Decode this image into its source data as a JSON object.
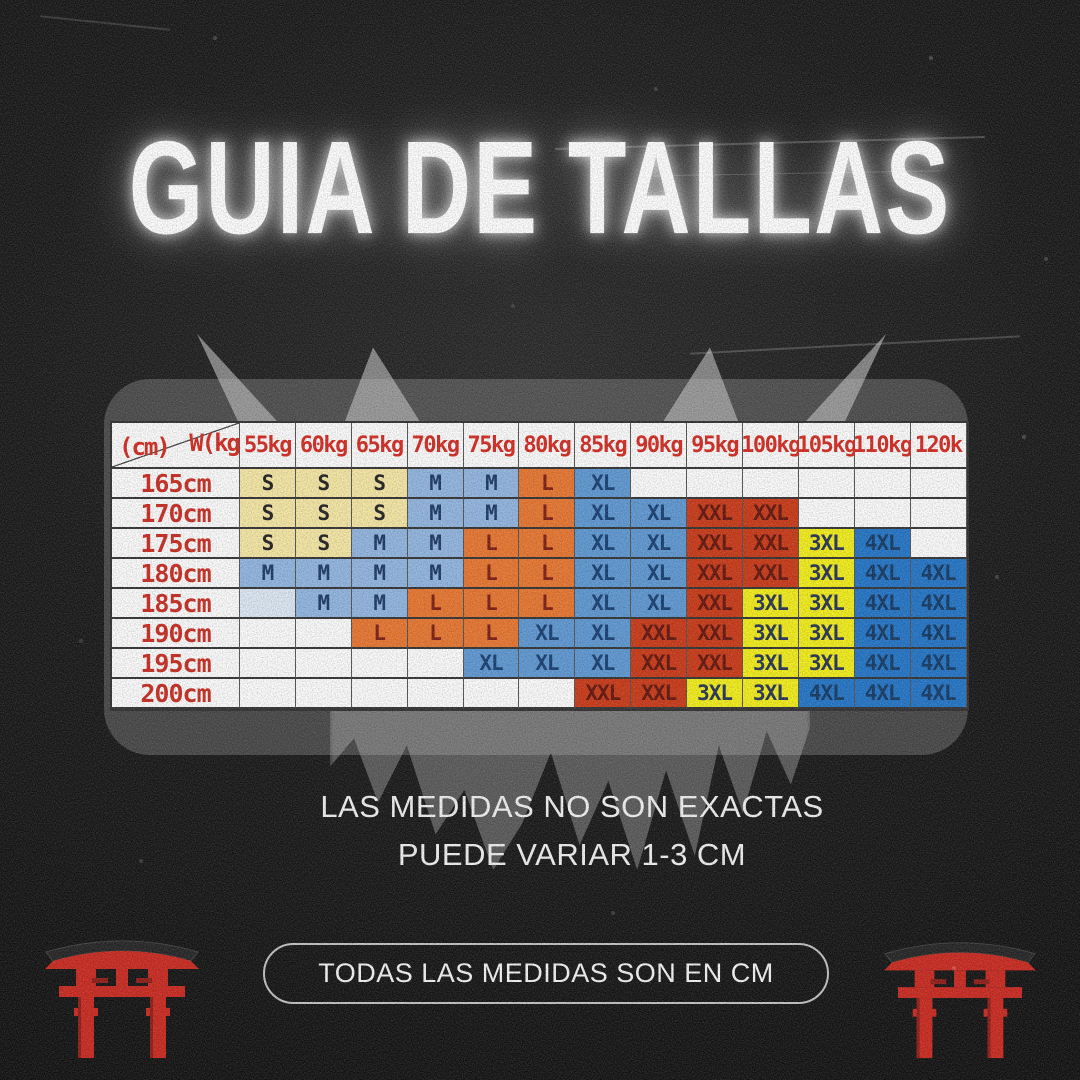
{
  "title": "GUIA DE TALLAS",
  "chart_data": {
    "type": "table",
    "title": "GUIA DE TALLAS",
    "corner_left": "(cm)",
    "corner_right": "W(kg",
    "columns": [
      "55kg",
      "60kg",
      "65kg",
      "70kg",
      "75kg",
      "80kg",
      "85kg",
      "90kg",
      "95kg",
      "100kg",
      "105kg",
      "110kg",
      "120k"
    ],
    "rows": [
      {
        "height": "165cm",
        "sizes": [
          "S",
          "S",
          "S",
          "M",
          "M",
          "L",
          "XL",
          "",
          "",
          "",
          "",
          "",
          ""
        ]
      },
      {
        "height": "170cm",
        "sizes": [
          "S",
          "S",
          "S",
          "M",
          "M",
          "L",
          "XL",
          "XL",
          "XXL",
          "XXL",
          "",
          "",
          ""
        ]
      },
      {
        "height": "175cm",
        "sizes": [
          "S",
          "S",
          "M",
          "M",
          "L",
          "L",
          "XL",
          "XL",
          "XXL",
          "XXL",
          "3XL",
          "4XL",
          ""
        ]
      },
      {
        "height": "180cm",
        "sizes": [
          "M",
          "M",
          "M",
          "M",
          "L",
          "L",
          "XL",
          "XL",
          "XXL",
          "XXL",
          "3XL",
          "4XL",
          "4XL"
        ]
      },
      {
        "height": "185cm",
        "sizes": [
          "",
          "M",
          "M",
          "L",
          "L",
          "L",
          "XL",
          "XL",
          "XXL",
          "3XL",
          "3XL",
          "4XL",
          "4XL"
        ]
      },
      {
        "height": "190cm",
        "sizes": [
          "",
          "",
          "L",
          "L",
          "L",
          "XL",
          "XL",
          "XXL",
          "XXL",
          "3XL",
          "3XL",
          "4XL",
          "4XL"
        ]
      },
      {
        "height": "195cm",
        "sizes": [
          "",
          "",
          "",
          "",
          "XL",
          "XL",
          "XL",
          "XXL",
          "XXL",
          "3XL",
          "3XL",
          "4XL",
          "4XL"
        ]
      },
      {
        "height": "200cm",
        "sizes": [
          "",
          "",
          "",
          "",
          "",
          "",
          "XXL",
          "XXL",
          "3XL",
          "3XL",
          "4XL",
          "4XL",
          "4XL"
        ]
      }
    ]
  },
  "table_styles": {
    "header_text_color": "#d3261c",
    "size_colors": {
      "S": {
        "bg": "#f6e7a2",
        "fg": "#1c1c1c"
      },
      "M": {
        "bg": "#8fb4e0",
        "fg": "#16345f"
      },
      "L": {
        "bg": "#e8732b",
        "fg": "#7a170d"
      },
      "XL": {
        "bg": "#5b96d2",
        "fg": "#123a6e"
      },
      "XXL": {
        "bg": "#c93512",
        "fg": "#5f0f05"
      },
      "3XL": {
        "bg": "#f3ee14",
        "fg": "#202e52"
      },
      "4XL": {
        "bg": "#1e72c6",
        "fg": "#0f3560"
      }
    },
    "empty_tint_cell": {
      "row_index": 4,
      "col_index": 0,
      "bg": "#dce8f5"
    }
  },
  "notes": {
    "line1": "LAS MEDIDAS NO SON EXACTAS",
    "line2": "PUEDE VARIAR 1-3 CM"
  },
  "footer_badge": "TODAS LAS MEDIDAS SON EN CM",
  "decor": {
    "torii_red": "#c9241a",
    "torii_dark_red": "#8e1710",
    "torii_roof": "#1f1f1f"
  }
}
